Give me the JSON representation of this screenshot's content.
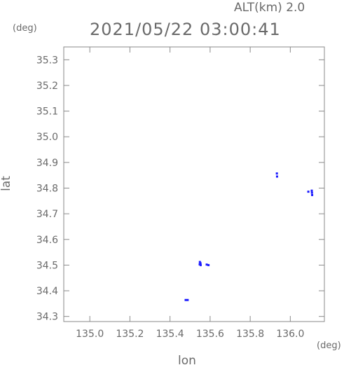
{
  "header": {
    "altitude_label": "ALT(km) 2.0",
    "timestamp": "2021/05/22 03:00:41"
  },
  "chart_data": {
    "type": "scatter",
    "title": "2021/05/22 03:00:41",
    "subtitle": "ALT(km) 2.0",
    "xlabel": "lon",
    "ylabel": "lat",
    "x_unit": "(deg)",
    "y_unit": "(deg)",
    "xlim": [
      134.87,
      136.17
    ],
    "ylim": [
      34.28,
      35.35
    ],
    "xticks": [
      "135.0",
      "135.2",
      "135.4",
      "135.6",
      "135.8",
      "136.0"
    ],
    "yticks": [
      "34.3",
      "34.4",
      "34.5",
      "34.6",
      "34.7",
      "34.8",
      "34.9",
      "35.0",
      "35.1",
      "35.2",
      "35.3"
    ],
    "grid": false,
    "legend": "none",
    "colors": {
      "points": "#1a1aff",
      "points_light": "#3fa7d6",
      "axis": "#8a8a8a",
      "text": "#6a6a6a"
    },
    "series": [
      {
        "points": [
          {
            "x": 135.549,
            "y": 34.512
          },
          {
            "x": 135.552,
            "y": 34.507
          },
          {
            "x": 135.548,
            "y": 34.503
          },
          {
            "x": 135.553,
            "y": 34.5
          },
          {
            "x": 135.583,
            "y": 34.502
          },
          {
            "x": 135.592,
            "y": 34.5
          },
          {
            "x": 135.478,
            "y": 34.364
          },
          {
            "x": 135.488,
            "y": 34.364
          },
          {
            "x": 135.933,
            "y": 34.857
          },
          {
            "x": 135.934,
            "y": 34.845
          },
          {
            "x": 136.107,
            "y": 34.79
          },
          {
            "x": 136.108,
            "y": 34.782
          },
          {
            "x": 136.109,
            "y": 34.773
          },
          {
            "x": 136.09,
            "y": 34.786
          }
        ]
      }
    ]
  }
}
